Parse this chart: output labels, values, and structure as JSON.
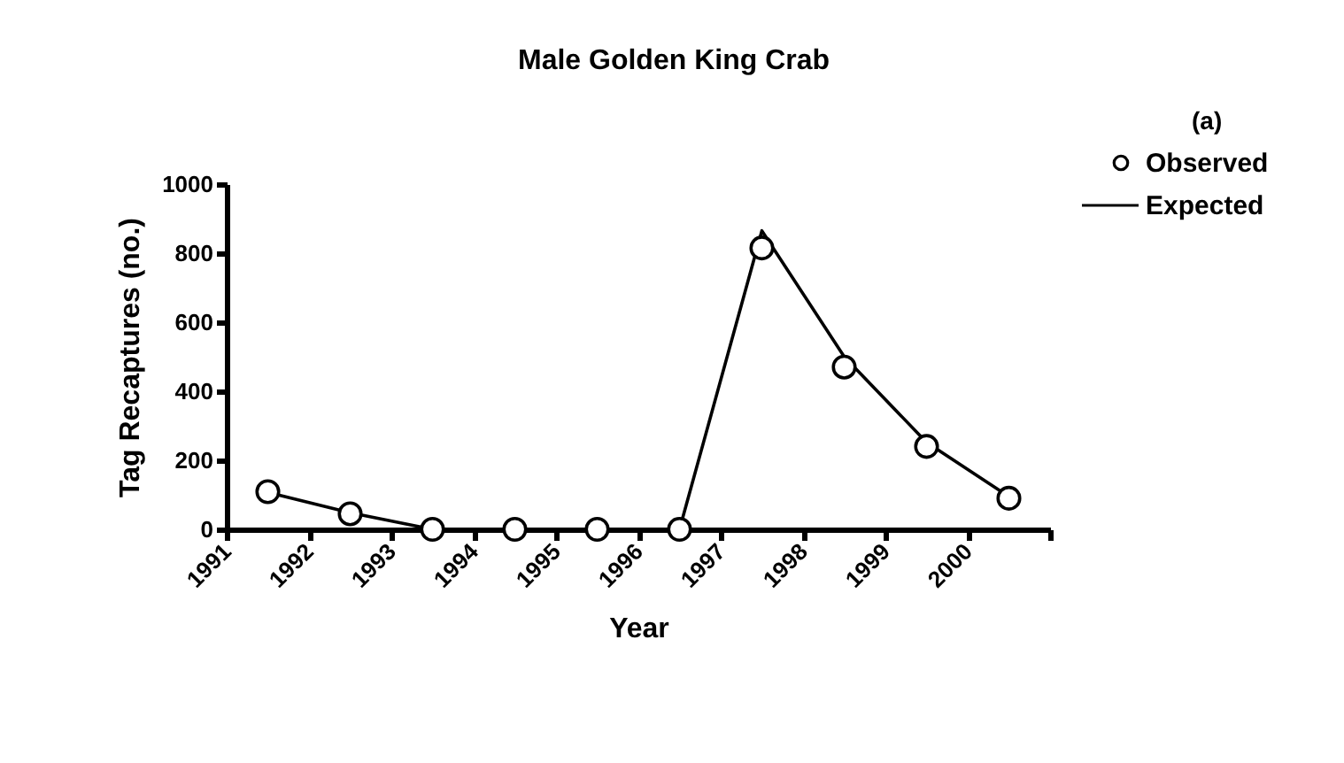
{
  "chart_data": {
    "type": "line",
    "title": "Male Golden King Crab",
    "xlabel": "Year",
    "ylabel": "Tag Recaptures (no.)",
    "annotations": [
      "(a)"
    ],
    "x": [
      1991.5,
      1992.5,
      1993.5,
      1994.5,
      1995.5,
      1996.5,
      1997.5,
      1998.5,
      1999.5,
      2000.5
    ],
    "series": [
      {
        "name": "Observed",
        "type": "scatter",
        "color": "#000000",
        "marker": "circle",
        "values": [
          109,
          45,
          0,
          0,
          0,
          0,
          815,
          470,
          240,
          90
        ]
      },
      {
        "name": "Expected",
        "type": "line",
        "color": "#000000",
        "line_style": "solid",
        "values": [
          107,
          48,
          0,
          0,
          0,
          0,
          865,
          500,
          252,
          95
        ]
      }
    ],
    "xlim": [
      1991,
      2001
    ],
    "xticks": [
      1991,
      1992,
      1993,
      1994,
      1995,
      1996,
      1997,
      1998,
      1999,
      2000,
      {
        "value": 2001,
        "label": null
      }
    ],
    "ylim": [
      0,
      1000
    ],
    "yticks": [
      0,
      200,
      400,
      600,
      800,
      1000
    ],
    "grid": false,
    "legend": "top right"
  }
}
